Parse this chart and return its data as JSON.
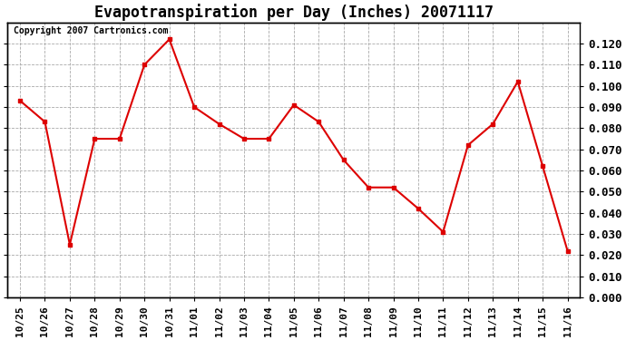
{
  "title": "Evapotranspiration per Day (Inches) 20071117",
  "copyright_text": "Copyright 2007 Cartronics.com",
  "x_labels": [
    "10/25",
    "10/26",
    "10/27",
    "10/28",
    "10/29",
    "10/30",
    "10/31",
    "11/01",
    "11/02",
    "11/03",
    "11/04",
    "11/05",
    "11/06",
    "11/07",
    "11/08",
    "11/09",
    "11/10",
    "11/11",
    "11/12",
    "11/13",
    "11/14",
    "11/15",
    "11/16"
  ],
  "y_values": [
    0.093,
    0.083,
    0.025,
    0.075,
    0.075,
    0.11,
    0.122,
    0.09,
    0.082,
    0.075,
    0.075,
    0.091,
    0.083,
    0.065,
    0.052,
    0.052,
    0.042,
    0.031,
    0.072,
    0.082,
    0.102,
    0.062,
    0.022
  ],
  "line_color": "#dd0000",
  "marker": "s",
  "marker_size": 3,
  "marker_color": "#dd0000",
  "ylim": [
    0.0,
    0.13
  ],
  "yticks": [
    0.0,
    0.01,
    0.02,
    0.03,
    0.04,
    0.05,
    0.06,
    0.07,
    0.08,
    0.09,
    0.1,
    0.11,
    0.12
  ],
  "bg_color": "#ffffff",
  "plot_bg_color": "#ffffff",
  "grid_color": "#aaaaaa",
  "title_fontsize": 12,
  "copyright_fontsize": 7,
  "tick_fontsize": 8,
  "label_fontsize": 9
}
